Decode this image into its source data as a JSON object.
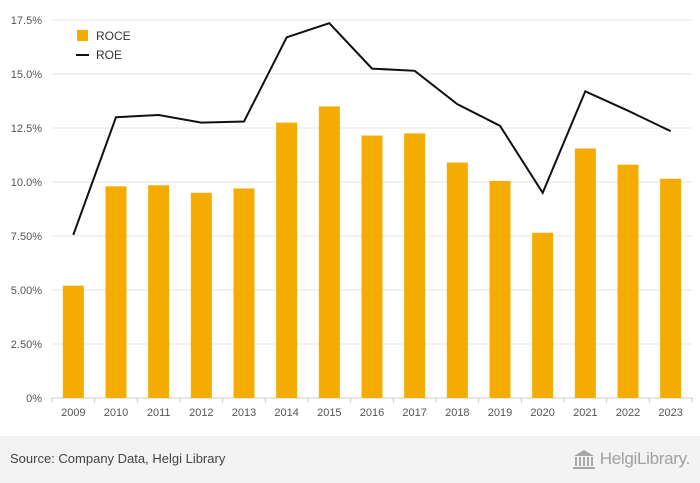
{
  "chart_data": {
    "type": "bar",
    "categories": [
      "2009",
      "2010",
      "2011",
      "2012",
      "2013",
      "2014",
      "2015",
      "2016",
      "2017",
      "2018",
      "2019",
      "2020",
      "2021",
      "2022",
      "2023"
    ],
    "series": [
      {
        "name": "ROCE",
        "type": "bar",
        "color": "#f5ac00",
        "values": [
          5.2,
          9.8,
          9.85,
          9.5,
          9.7,
          12.75,
          13.5,
          12.15,
          12.25,
          10.9,
          10.05,
          7.65,
          11.55,
          10.8,
          10.15
        ]
      },
      {
        "name": "ROE",
        "type": "line",
        "color": "#111111",
        "values": [
          7.55,
          13.0,
          13.1,
          12.75,
          12.8,
          16.7,
          17.35,
          15.25,
          15.15,
          13.6,
          12.6,
          9.5,
          14.2,
          13.3,
          12.35
        ]
      }
    ],
    "ylim": [
      0,
      17.5
    ],
    "yticks": [
      0,
      2.5,
      5,
      7.5,
      10,
      12.5,
      15,
      17.5
    ],
    "ytick_labels": [
      "0%",
      "2.50%",
      "5.00%",
      "7.50%",
      "10.0%",
      "12.5%",
      "15.0%",
      "17.5%"
    ],
    "grid": true,
    "legend_position": "top-left"
  },
  "footer": {
    "source": "Source: Company Data, Helgi Library",
    "logo_text": "HelgiLibrary."
  }
}
